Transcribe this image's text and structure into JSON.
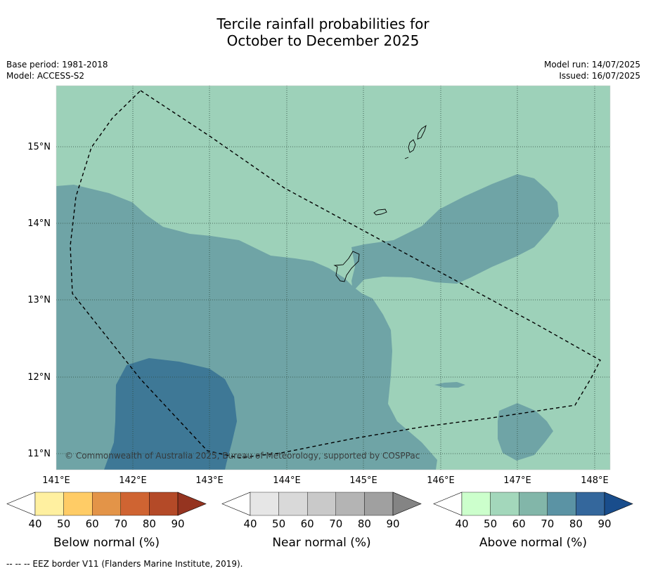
{
  "title_line1": "Tercile rainfall probabilities for",
  "title_line2": "October to December 2025",
  "meta_left": [
    "Base period: 1981-2018",
    "Model: ACCESS-S2"
  ],
  "meta_right": [
    "Model run: 14/07/2025",
    "Issued: 16/07/2025"
  ],
  "map": {
    "lon_labels": [
      "141°E",
      "142°E",
      "143°E",
      "144°E",
      "145°E",
      "146°E",
      "147°E",
      "148°E"
    ],
    "lat_labels": [
      "15°N",
      "14°N",
      "13°N",
      "12°N",
      "11°N"
    ],
    "copyright": "© Commonwealth of Australia 2025, Bureau of Meteorology, supported by COSPPac",
    "background_color": "#9dd1b9"
  },
  "colorbars": [
    {
      "title": "Below normal (%)",
      "ticks": [
        "40",
        "50",
        "60",
        "70",
        "80",
        "90"
      ],
      "colors": [
        "#ffffff",
        "#fff0a0",
        "#ffcc66",
        "#e39448",
        "#cf6432",
        "#b44a28",
        "#953420"
      ]
    },
    {
      "title": "Near normal (%)",
      "ticks": [
        "40",
        "50",
        "60",
        "70",
        "80",
        "90"
      ],
      "colors": [
        "#ffffff",
        "#e6e6e6",
        "#d9d9d9",
        "#c9c9c9",
        "#b4b4b4",
        "#a0a0a0",
        "#848484"
      ]
    },
    {
      "title": "Above normal (%)",
      "ticks": [
        "40",
        "50",
        "60",
        "70",
        "80",
        "90"
      ],
      "colors": [
        "#ffffff",
        "#ccffcc",
        "#a3d7bb",
        "#82b6a9",
        "#5b93a4",
        "#34679c",
        "#194d8c"
      ]
    }
  ],
  "footnote": "--  --  -- EEZ border V11 (Flanders Marine Institute, 2019)."
}
